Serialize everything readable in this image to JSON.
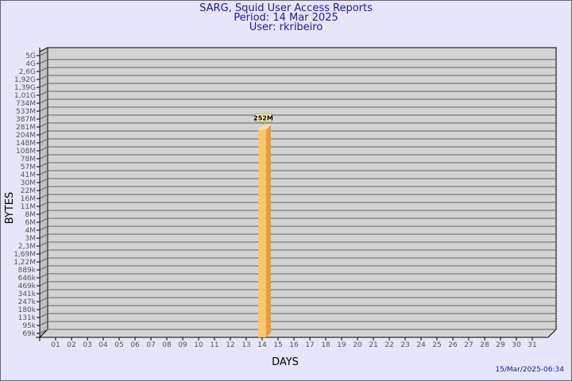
{
  "header": {
    "title": "SARG, Squid User Access Reports",
    "period": "Period: 14 Mar 2025",
    "user": "User: rkribeiro"
  },
  "footer": {
    "timestamp": "15/Mar/2025-06:34"
  },
  "chart_data": {
    "type": "bar",
    "xlabel": "DAYS",
    "ylabel": "BYTES",
    "y_scale": "log",
    "grid": true,
    "y_tick_labels": [
      "5G",
      "4G",
      "2,6G",
      "1,92G",
      "1,39G",
      "1,01G",
      "734M",
      "533M",
      "387M",
      "281M",
      "204M",
      "148M",
      "108M",
      "78M",
      "57M",
      "41M",
      "30M",
      "22M",
      "16M",
      "11M",
      "8M",
      "6M",
      "4M",
      "3M",
      "2,3M",
      "1,69M",
      "1,22M",
      "889k",
      "646k",
      "469k",
      "341k",
      "247k",
      "180k",
      "131k",
      "95k",
      "69k"
    ],
    "categories": [
      "01",
      "02",
      "03",
      "04",
      "05",
      "06",
      "07",
      "08",
      "09",
      "10",
      "11",
      "12",
      "13",
      "14",
      "15",
      "16",
      "17",
      "18",
      "19",
      "20",
      "21",
      "22",
      "23",
      "24",
      "25",
      "26",
      "27",
      "28",
      "29",
      "30",
      "31"
    ],
    "series": [
      {
        "values": [
          null,
          null,
          null,
          null,
          null,
          null,
          null,
          null,
          null,
          null,
          null,
          null,
          null,
          252,
          null,
          null,
          null,
          null,
          null,
          null,
          null,
          null,
          null,
          null,
          null,
          null,
          null,
          null,
          null,
          null,
          null
        ],
        "unit": "M"
      }
    ],
    "data_labels": {
      "14": "252M"
    },
    "colors": {
      "bar_front": "#ffc466",
      "bar_side": "#e0a040",
      "plot_bg": "#d3d3d3",
      "grid": "#666666",
      "label_box": "#fff799"
    }
  }
}
